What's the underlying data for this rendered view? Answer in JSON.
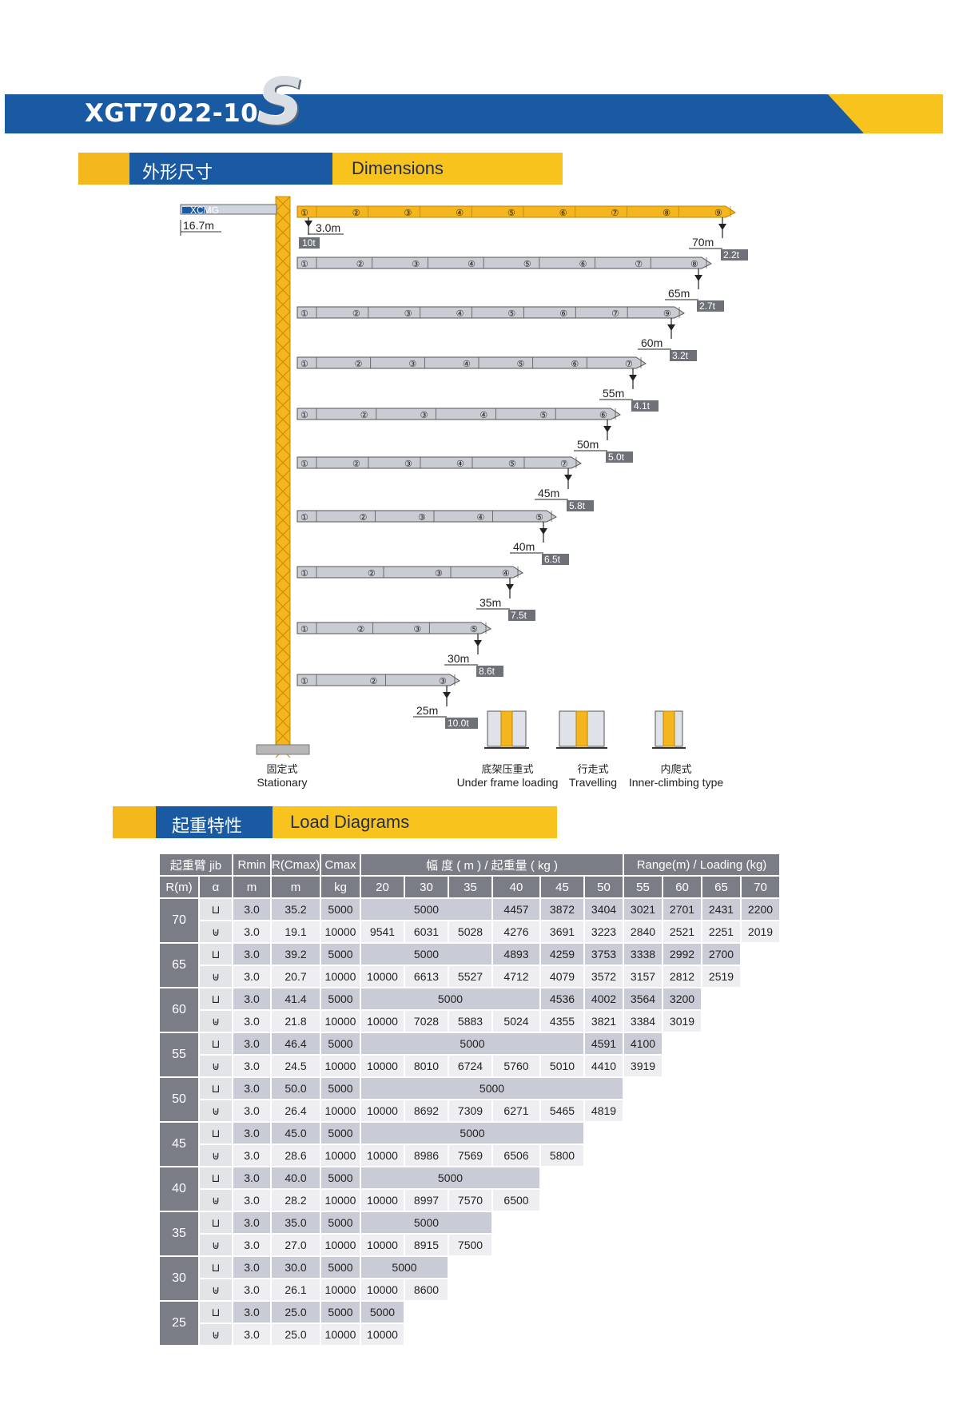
{
  "title": {
    "model": "XGT7022-10",
    "logo_letter": "S"
  },
  "dimensions_header": {
    "cn": "外形尺寸",
    "en": "Dimensions"
  },
  "load_header": {
    "cn": "起重特性",
    "en": "Load Diagrams"
  },
  "crane": {
    "counter_jib": "16.7m",
    "brand": "XCMG",
    "rmin_label": "3.0m",
    "rmin_load": "10t",
    "jibs": [
      {
        "len": "70m",
        "load": "2.2t",
        "sections": [
          "①",
          "②",
          "③",
          "④",
          "⑤",
          "⑥",
          "⑦",
          "⑧",
          "⑨"
        ]
      },
      {
        "len": "65m",
        "load": "2.7t",
        "sections": [
          "①",
          "②",
          "③",
          "④",
          "⑤",
          "⑥",
          "⑦",
          "⑧"
        ]
      },
      {
        "len": "60m",
        "load": "3.2t",
        "sections": [
          "①",
          "②",
          "③",
          "④",
          "⑤",
          "⑥",
          "⑦",
          "⑨"
        ]
      },
      {
        "len": "55m",
        "load": "4.1t",
        "sections": [
          "①",
          "②",
          "③",
          "④",
          "⑤",
          "⑥",
          "⑦"
        ]
      },
      {
        "len": "50m",
        "load": "5.0t",
        "sections": [
          "①",
          "②",
          "③",
          "④",
          "⑤",
          "⑥"
        ]
      },
      {
        "len": "45m",
        "load": "5.8t",
        "sections": [
          "①",
          "②",
          "③",
          "④",
          "⑤",
          "⑦"
        ]
      },
      {
        "len": "40m",
        "load": "6.5t",
        "sections": [
          "①",
          "②",
          "③",
          "④",
          "⑤"
        ]
      },
      {
        "len": "35m",
        "load": "7.5t",
        "sections": [
          "①",
          "②",
          "③",
          "④"
        ]
      },
      {
        "len": "30m",
        "load": "8.6t",
        "sections": [
          "①",
          "②",
          "③",
          "⑤"
        ]
      },
      {
        "len": "25m",
        "load": "10.0t",
        "sections": [
          "①",
          "②",
          "③"
        ]
      }
    ],
    "types": [
      {
        "cn": "固定式",
        "en": "Stationary"
      },
      {
        "cn": "底架压重式",
        "en": "Under frame loading"
      },
      {
        "cn": "行走式",
        "en": "Travelling"
      },
      {
        "cn": "内爬式",
        "en": "Inner-climbing type"
      }
    ]
  },
  "table": {
    "head1": {
      "jib": "起重臂 jib",
      "rmin": "Rmin",
      "rc": "R(Cmax)",
      "cmax": "Cmax",
      "range_cn": "幅 度 ( m ) / 起重量 ( kg )",
      "range_en": "Range(m) / Loading (kg)"
    },
    "head2": [
      "R(m)",
      "α",
      "m",
      "m",
      "kg",
      "20",
      "30",
      "35",
      "40",
      "45",
      "50",
      "55",
      "60",
      "65",
      "70"
    ],
    "rows": [
      {
        "jib": "70",
        "rmin": "3.0",
        "rc": "35.2",
        "cmax": "5000",
        "vals": [
          [
            "5000",
            3
          ],
          [
            "4457",
            1
          ],
          [
            "3872",
            1
          ],
          [
            "3404",
            1
          ],
          [
            "3021",
            1
          ],
          [
            "2701",
            1
          ],
          [
            "2431",
            1
          ],
          [
            "2200",
            1
          ]
        ],
        "blank": 0
      },
      {
        "jib": "",
        "rmin": "3.0",
        "rc": "19.1",
        "cmax": "10000",
        "vals": [
          [
            "9541",
            1
          ],
          [
            "6031",
            1
          ],
          [
            "5028",
            1
          ],
          [
            "4276",
            1
          ],
          [
            "3691",
            1
          ],
          [
            "3223",
            1
          ],
          [
            "2840",
            1
          ],
          [
            "2521",
            1
          ],
          [
            "2251",
            1
          ],
          [
            "2019",
            1
          ]
        ],
        "blank": 0
      },
      {
        "jib": "65",
        "rmin": "3.0",
        "rc": "39.2",
        "cmax": "5000",
        "vals": [
          [
            "5000",
            3
          ],
          [
            "4893",
            1
          ],
          [
            "4259",
            1
          ],
          [
            "3753",
            1
          ],
          [
            "3338",
            1
          ],
          [
            "2992",
            1
          ],
          [
            "2700",
            1
          ]
        ],
        "blank": 1
      },
      {
        "jib": "",
        "rmin": "3.0",
        "rc": "20.7",
        "cmax": "10000",
        "vals": [
          [
            "10000",
            1
          ],
          [
            "6613",
            1
          ],
          [
            "5527",
            1
          ],
          [
            "4712",
            1
          ],
          [
            "4079",
            1
          ],
          [
            "3572",
            1
          ],
          [
            "3157",
            1
          ],
          [
            "2812",
            1
          ],
          [
            "2519",
            1
          ]
        ],
        "blank": 1
      },
      {
        "jib": "60",
        "rmin": "3.0",
        "rc": "41.4",
        "cmax": "5000",
        "vals": [
          [
            "5000",
            4
          ],
          [
            "4536",
            1
          ],
          [
            "4002",
            1
          ],
          [
            "3564",
            1
          ],
          [
            "3200",
            1
          ]
        ],
        "blank": 2
      },
      {
        "jib": "",
        "rmin": "3.0",
        "rc": "21.8",
        "cmax": "10000",
        "vals": [
          [
            "10000",
            1
          ],
          [
            "7028",
            1
          ],
          [
            "5883",
            1
          ],
          [
            "5024",
            1
          ],
          [
            "4355",
            1
          ],
          [
            "3821",
            1
          ],
          [
            "3384",
            1
          ],
          [
            "3019",
            1
          ]
        ],
        "blank": 2
      },
      {
        "jib": "55",
        "rmin": "3.0",
        "rc": "46.4",
        "cmax": "5000",
        "vals": [
          [
            "5000",
            5
          ],
          [
            "4591",
            1
          ],
          [
            "4100",
            1
          ]
        ],
        "blank": 3
      },
      {
        "jib": "",
        "rmin": "3.0",
        "rc": "24.5",
        "cmax": "10000",
        "vals": [
          [
            "10000",
            1
          ],
          [
            "8010",
            1
          ],
          [
            "6724",
            1
          ],
          [
            "5760",
            1
          ],
          [
            "5010",
            1
          ],
          [
            "4410",
            1
          ],
          [
            "3919",
            1
          ]
        ],
        "blank": 3
      },
      {
        "jib": "50",
        "rmin": "3.0",
        "rc": "50.0",
        "cmax": "5000",
        "vals": [
          [
            "5000",
            6
          ]
        ],
        "blank": 4
      },
      {
        "jib": "",
        "rmin": "3.0",
        "rc": "26.4",
        "cmax": "10000",
        "vals": [
          [
            "10000",
            1
          ],
          [
            "8692",
            1
          ],
          [
            "7309",
            1
          ],
          [
            "6271",
            1
          ],
          [
            "5465",
            1
          ],
          [
            "4819",
            1
          ]
        ],
        "blank": 4
      },
      {
        "jib": "45",
        "rmin": "3.0",
        "rc": "45.0",
        "cmax": "5000",
        "vals": [
          [
            "5000",
            5
          ]
        ],
        "blank": 5
      },
      {
        "jib": "",
        "rmin": "3.0",
        "rc": "28.6",
        "cmax": "10000",
        "vals": [
          [
            "10000",
            1
          ],
          [
            "8986",
            1
          ],
          [
            "7569",
            1
          ],
          [
            "6506",
            1
          ],
          [
            "5800",
            1
          ]
        ],
        "blank": 5
      },
      {
        "jib": "40",
        "rmin": "3.0",
        "rc": "40.0",
        "cmax": "5000",
        "vals": [
          [
            "5000",
            4
          ]
        ],
        "blank": 6
      },
      {
        "jib": "",
        "rmin": "3.0",
        "rc": "28.2",
        "cmax": "10000",
        "vals": [
          [
            "10000",
            1
          ],
          [
            "8997",
            1
          ],
          [
            "7570",
            1
          ],
          [
            "6500",
            1
          ]
        ],
        "blank": 6
      },
      {
        "jib": "35",
        "rmin": "3.0",
        "rc": "35.0",
        "cmax": "5000",
        "vals": [
          [
            "5000",
            3
          ]
        ],
        "blank": 7
      },
      {
        "jib": "",
        "rmin": "3.0",
        "rc": "27.0",
        "cmax": "10000",
        "vals": [
          [
            "10000",
            1
          ],
          [
            "8915",
            1
          ],
          [
            "7500",
            1
          ]
        ],
        "blank": 7
      },
      {
        "jib": "30",
        "rmin": "3.0",
        "rc": "30.0",
        "cmax": "5000",
        "vals": [
          [
            "5000",
            2
          ]
        ],
        "blank": 8
      },
      {
        "jib": "",
        "rmin": "3.0",
        "rc": "26.1",
        "cmax": "10000",
        "vals": [
          [
            "10000",
            1
          ],
          [
            "8600",
            1
          ]
        ],
        "blank": 8
      },
      {
        "jib": "25",
        "rmin": "3.0",
        "rc": "25.0",
        "cmax": "5000",
        "vals": [
          [
            "5000",
            1
          ]
        ],
        "blank": 9
      },
      {
        "jib": "",
        "rmin": "3.0",
        "rc": "25.0",
        "cmax": "10000",
        "vals": [
          [
            "10000",
            1
          ]
        ],
        "blank": 9
      }
    ]
  },
  "colors": {
    "blue": "#1a5aa3",
    "yellow": "#f8c31d",
    "mast": "#f5b51e",
    "grey": "#7a7d86"
  }
}
